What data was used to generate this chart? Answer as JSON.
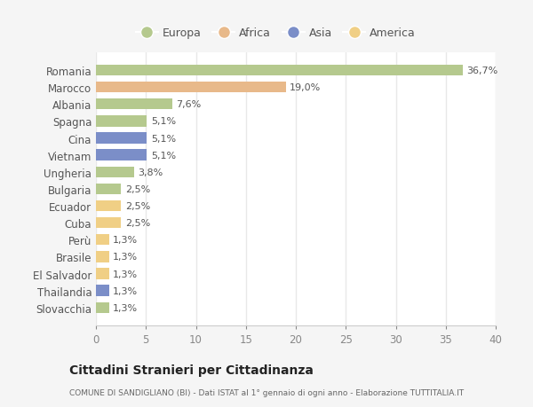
{
  "categories": [
    "Romania",
    "Marocco",
    "Albania",
    "Spagna",
    "Cina",
    "Vietnam",
    "Ungheria",
    "Bulgaria",
    "Ecuador",
    "Cuba",
    "Perù",
    "Brasile",
    "El Salvador",
    "Thailandia",
    "Slovacchia"
  ],
  "values": [
    36.7,
    19.0,
    7.6,
    5.1,
    5.1,
    5.1,
    3.8,
    2.5,
    2.5,
    2.5,
    1.3,
    1.3,
    1.3,
    1.3,
    1.3
  ],
  "labels": [
    "36,7%",
    "19,0%",
    "7,6%",
    "5,1%",
    "5,1%",
    "5,1%",
    "3,8%",
    "2,5%",
    "2,5%",
    "2,5%",
    "1,3%",
    "1,3%",
    "1,3%",
    "1,3%",
    "1,3%"
  ],
  "colors": [
    "#b5c98e",
    "#e8b98a",
    "#b5c98e",
    "#b5c98e",
    "#7b8ec8",
    "#7b8ec8",
    "#b5c98e",
    "#b5c98e",
    "#f0cf85",
    "#f0cf85",
    "#f0cf85",
    "#f0cf85",
    "#f0cf85",
    "#7b8ec8",
    "#b5c98e"
  ],
  "legend_labels": [
    "Europa",
    "Africa",
    "Asia",
    "America"
  ],
  "legend_colors": [
    "#b5c98e",
    "#e8b98a",
    "#7b8ec8",
    "#f0cf85"
  ],
  "xlim": [
    0,
    40
  ],
  "xticks": [
    0,
    5,
    10,
    15,
    20,
    25,
    30,
    35,
    40
  ],
  "title": "Cittadini Stranieri per Cittadinanza",
  "subtitle": "COMUNE DI SANDIGLIANO (BI) - Dati ISTAT al 1° gennaio di ogni anno - Elaborazione TUTTITALIA.IT",
  "background_color": "#f5f5f5",
  "bar_background": "#ffffff",
  "grid_color": "#dddddd"
}
